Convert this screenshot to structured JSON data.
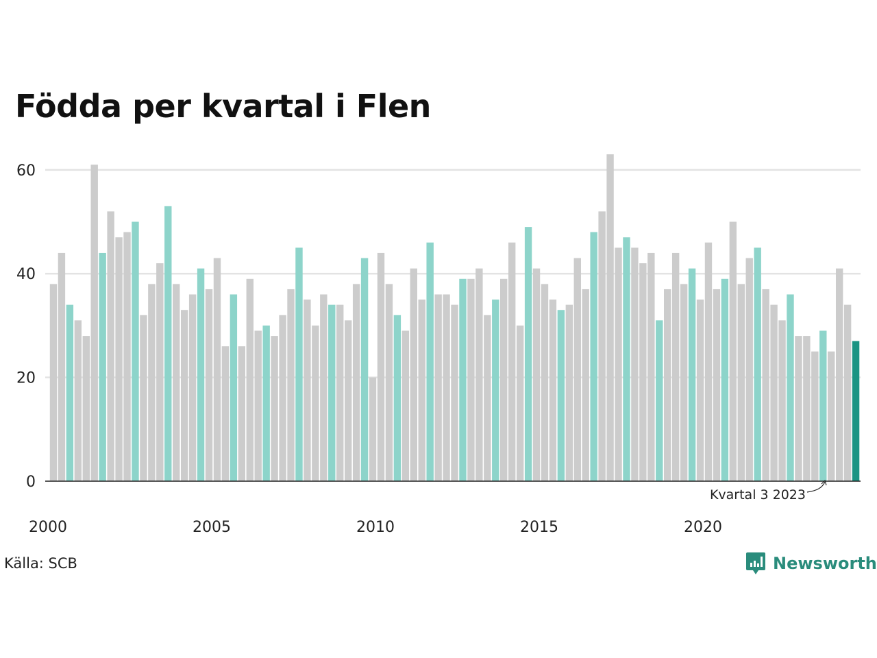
{
  "colors": {
    "default": "#cccccc",
    "highlight_q3": "#8dd4ca",
    "latest": "#1a9483",
    "brand": "#2a8c7c"
  },
  "source_text": "Källa: SCB",
  "brand_name": "Newsworthy",
  "chart_data": {
    "type": "bar",
    "title": "Födda per kvartal i Flen",
    "xlabel": "",
    "ylabel": "",
    "ylim": [
      0,
      65
    ],
    "yticks": [
      0,
      20,
      40,
      60
    ],
    "xtick_labels": [
      "2000",
      "2005",
      "2010",
      "2015",
      "2020"
    ],
    "grid": true,
    "annotation": "Kvartal 3 2023",
    "start": "2000 Q1",
    "end": "2024 Q3",
    "values": [
      38,
      44,
      34,
      31,
      28,
      61,
      44,
      52,
      47,
      48,
      50,
      32,
      38,
      42,
      53,
      38,
      33,
      36,
      41,
      37,
      43,
      26,
      36,
      26,
      39,
      29,
      30,
      28,
      32,
      37,
      45,
      35,
      30,
      36,
      34,
      34,
      31,
      38,
      43,
      20,
      44,
      38,
      32,
      29,
      41,
      35,
      46,
      36,
      36,
      34,
      39,
      39,
      41,
      32,
      35,
      39,
      46,
      30,
      49,
      41,
      38,
      35,
      33,
      34,
      43,
      37,
      48,
      52,
      63,
      45,
      47,
      45,
      42,
      44,
      31,
      37,
      44,
      38,
      41,
      35,
      46,
      37,
      39,
      50,
      38,
      43,
      45,
      37,
      34,
      31,
      36,
      28,
      28,
      25,
      29,
      25,
      41,
      34,
      27
    ]
  }
}
